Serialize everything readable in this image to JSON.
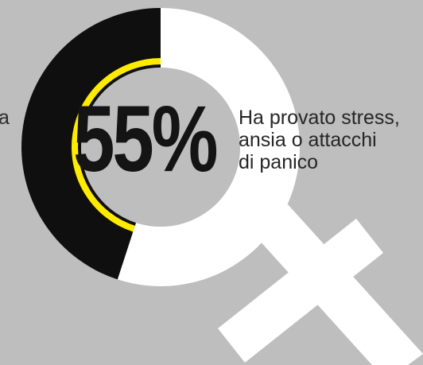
{
  "chart_data": {
    "type": "pie",
    "value_label": "55%",
    "values": [
      55,
      45
    ],
    "caption": [
      "Ha provato stress,",
      "ansia o attacchi",
      "di panico"
    ],
    "left_caption_fragment": "a"
  },
  "colors": {
    "background": "#bebebe",
    "dark_segment": "#0f0f0f",
    "light_segment": "#ffffff",
    "inner_disc": "#bebebe",
    "accent_arc": "#ffeb00",
    "text": "#262626"
  },
  "icons": {
    "symbol": "female-symbol-icon"
  }
}
